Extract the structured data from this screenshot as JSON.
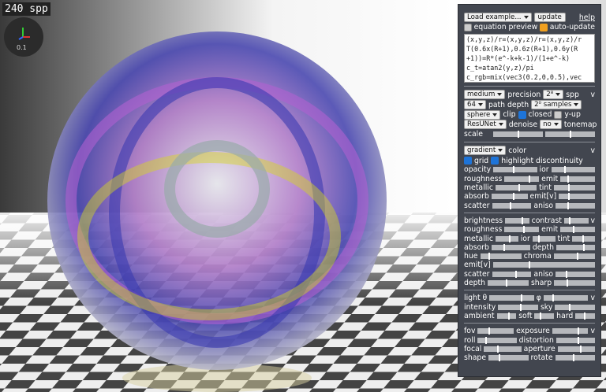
{
  "viewport": {
    "spp": "240 spp",
    "axis_scale": "0.1"
  },
  "panel": {
    "load_example": "Load example...",
    "update": "update",
    "help": "help",
    "equation_preview": "equation preview",
    "auto_update": "auto-update",
    "code_lines": [
      "(x,y,z)/r=(x,y,z)/r=(x,y,z)/r",
      "T(0.6x(R+1),0.6z(R+1),0.6y(R",
      "+1))=R*(e^-k+k-1)/(1+e^-k)",
      "c_t=atan2(y,z)/pi",
      "c_rgb=mix(vec3(0.2,0,0.5),vec",
      "3(1,1,0),0.2+1.5c_t)"
    ],
    "render": {
      "medium": "medium",
      "precision": "precision",
      "spp_select": "2⁸",
      "spp": "spp",
      "collapse": "v",
      "depth_select": "64",
      "path_depth": "path depth",
      "samples_select": "2⁰ samples",
      "clip_select": "sphere",
      "clip": "clip",
      "closed": "closed",
      "y_up": "y-up",
      "denoiser": "ResUNet",
      "denoise": "denoise",
      "tonemap_select": "no",
      "tonemap": "tonemap",
      "scale": "scale"
    },
    "material": {
      "color_select": "gradient",
      "color": "color",
      "collapse": "v",
      "grid": "grid",
      "highlight": "highlight discontinuity",
      "sliders": [
        [
          "opacity",
          "ior"
        ],
        [
          "roughness",
          "emit"
        ],
        [
          "metallic",
          "tint"
        ],
        [
          "absorb",
          "emit[v]"
        ],
        [
          "scatter",
          "aniso"
        ]
      ]
    },
    "appearance": {
      "collapse": "v",
      "sliders": [
        [
          "brightness",
          "contrast"
        ],
        [
          "roughness",
          "emit"
        ],
        [
          "metallic",
          "ior",
          "tint"
        ],
        [
          "absorb",
          "depth"
        ],
        [
          "hue",
          "chroma"
        ],
        [
          "emit[v]"
        ],
        [
          "scatter",
          "aniso"
        ],
        [
          "depth",
          "sharp"
        ]
      ]
    },
    "light": {
      "collapse": "v",
      "sliders": [
        [
          "light θ",
          "φ"
        ],
        [
          "intensity",
          "sky"
        ],
        [
          "ambient",
          "soft",
          "hard"
        ]
      ]
    },
    "camera": {
      "collapse": "v",
      "sliders": [
        [
          "fov",
          "exposure"
        ],
        [
          "roll",
          "distortion"
        ],
        [
          "focal",
          "aperture"
        ],
        [
          "shape",
          "rotate"
        ]
      ]
    }
  }
}
